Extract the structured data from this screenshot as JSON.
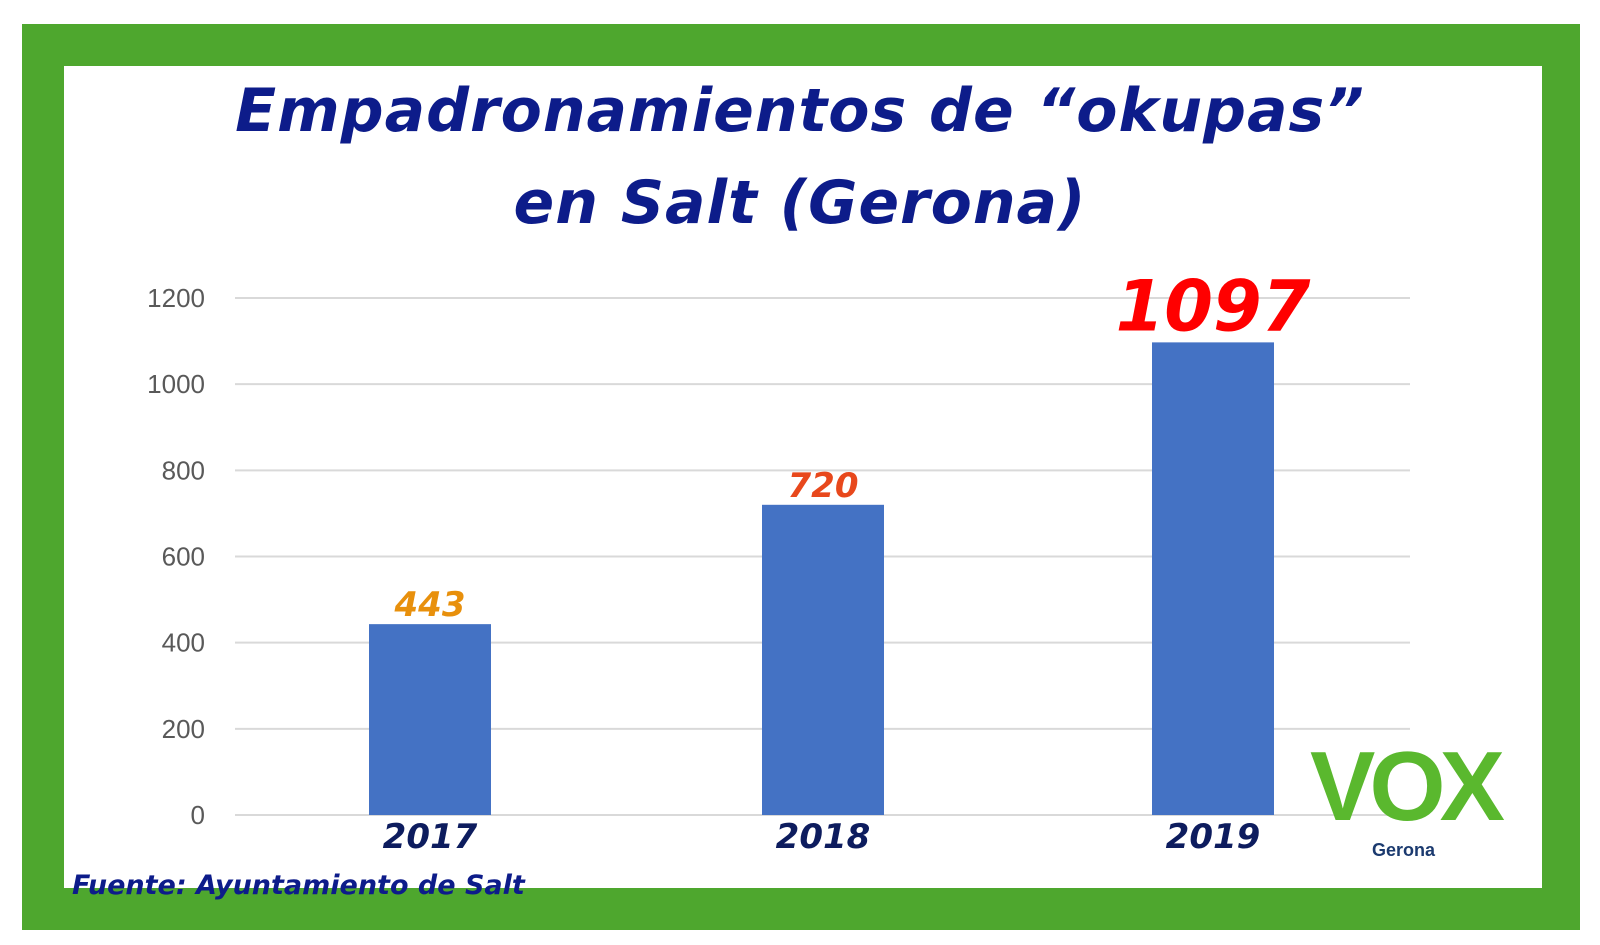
{
  "title_lines": [
    "Empadronamientos de “okupas”",
    "en Salt (Gerona)"
  ],
  "source": "Fuente: Ayuntamiento de Salt",
  "logo": {
    "text": "VOX",
    "subtitle": "Gerona"
  },
  "colors": {
    "frame": "#4ea72e",
    "bar": "#4472c4",
    "title": "#0d1c8a"
  },
  "chart_data": {
    "type": "bar",
    "title": "Empadronamientos de “okupas” en Salt (Gerona)",
    "categories": [
      "2017",
      "2018",
      "2019"
    ],
    "values": [
      443,
      720,
      1097
    ],
    "data_labels": [
      "443",
      "720",
      "1097"
    ],
    "data_label_colors": [
      "#e8900c",
      "#e8481c",
      "#ff0000"
    ],
    "yticks": [
      "0",
      "200",
      "400",
      "600",
      "800",
      "1000",
      "1200"
    ],
    "ylim": [
      0,
      1200
    ],
    "xlabel": "",
    "ylabel": "",
    "grid": true,
    "legend": "none"
  }
}
